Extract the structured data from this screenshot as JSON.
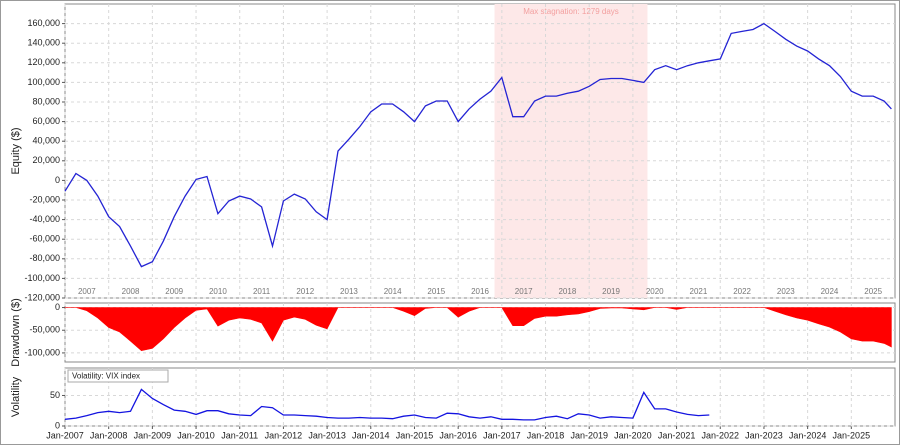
{
  "chart_data": [
    {
      "type": "line",
      "y_label": "Equity ($)",
      "xlim": [
        "2007-01",
        "2026-01"
      ],
      "xticks": [
        "2007",
        "2008",
        "2009",
        "2010",
        "2011",
        "2012",
        "2013",
        "2014",
        "2015",
        "2016",
        "2017",
        "2018",
        "2019",
        "2020",
        "2021",
        "2022",
        "2023",
        "2024",
        "2025"
      ],
      "ylim": [
        -120000,
        180000
      ],
      "yticks": [
        {
          "value": 160000,
          "label": "160,000"
        },
        {
          "value": 140000,
          "label": "140,000"
        },
        {
          "value": 120000,
          "label": "120,000"
        },
        {
          "value": 100000,
          "label": "100,000"
        },
        {
          "value": 80000,
          "label": "80,000"
        },
        {
          "value": 60000,
          "label": "60,000"
        },
        {
          "value": 40000,
          "label": "40,000"
        },
        {
          "value": 20000,
          "label": "20,000"
        },
        0,
        {
          "value": -20000,
          "label": "-20,000"
        },
        {
          "value": -40000,
          "label": "-40,000"
        },
        {
          "value": -60000,
          "label": "-60,000"
        },
        {
          "value": -80000,
          "label": "-80,000"
        },
        {
          "value": -100000,
          "label": "-100,000"
        },
        {
          "value": -120000,
          "label": "-120,000"
        }
      ],
      "grid": true,
      "shade": {
        "text": "Max stagnation: 1279 days",
        "x": [
          "2016-11",
          "2020-05"
        ],
        "color": "#fde8e8"
      },
      "x": [
        "2007-01",
        "2007-04",
        "2007-07",
        "2007-10",
        "2008-01",
        "2008-04",
        "2008-07",
        "2008-10",
        "2009-01",
        "2009-04",
        "2009-07",
        "2009-10",
        "2010-01",
        "2010-04",
        "2010-07",
        "2010-10",
        "2011-01",
        "2011-04",
        "2011-07",
        "2011-10",
        "2012-01",
        "2012-04",
        "2012-07",
        "2012-10",
        "2013-01",
        "2013-04",
        "2013-07",
        "2013-10",
        "2014-01",
        "2014-04",
        "2014-07",
        "2014-10",
        "2015-01",
        "2015-04",
        "2015-07",
        "2015-10",
        "2016-01",
        "2016-04",
        "2016-07",
        "2016-10",
        "2017-01",
        "2017-04",
        "2017-07",
        "2017-10",
        "2018-01",
        "2018-04",
        "2018-07",
        "2018-10",
        "2019-01",
        "2019-04",
        "2019-07",
        "2019-10",
        "2020-01",
        "2020-04",
        "2020-07",
        "2020-10",
        "2021-01",
        "2021-04",
        "2021-07",
        "2021-10",
        "2022-01",
        "2022-04",
        "2022-07",
        "2022-10",
        "2023-01",
        "2023-04",
        "2023-07",
        "2023-10",
        "2024-01",
        "2024-04",
        "2024-07",
        "2024-10",
        "2025-01",
        "2025-04",
        "2025-07",
        "2025-10",
        "2025-12"
      ],
      "series": [
        {
          "color": "#2424d4",
          "values": [
            -11000,
            7000,
            0,
            -16000,
            -37000,
            -47000,
            -67000,
            -88000,
            -83000,
            -62000,
            -37000,
            -16000,
            1000,
            4000,
            -34000,
            -21000,
            -16000,
            -19000,
            -27000,
            -67000,
            -21000,
            -14000,
            -19000,
            -32000,
            -40000,
            30000,
            42000,
            55000,
            70000,
            78000,
            78000,
            70000,
            60000,
            76000,
            81000,
            81000,
            60000,
            73000,
            83000,
            91000,
            105000,
            65000,
            65000,
            81000,
            86000,
            86000,
            89000,
            91000,
            96000,
            103000,
            104000,
            104000,
            102000,
            100000,
            113000,
            117000,
            113000,
            117000,
            120000,
            122000,
            124000,
            150000,
            152000,
            154000,
            160000,
            152000,
            144000,
            137000,
            132000,
            124000,
            117000,
            106000,
            91000,
            86000,
            86000,
            81000,
            73000
          ]
        }
      ]
    },
    {
      "type": "area",
      "y_label": "Drawdown ($)",
      "xlim": [
        "2007-01",
        "2026-01"
      ],
      "ylim": [
        -120000,
        10000
      ],
      "yticks": [
        0,
        {
          "value": -50000,
          "label": "-50,000"
        },
        {
          "value": -100000,
          "label": "-100,000"
        }
      ],
      "grid": true,
      "x": [
        "2007-01",
        "2007-04",
        "2007-07",
        "2007-10",
        "2008-01",
        "2008-04",
        "2008-07",
        "2008-10",
        "2009-01",
        "2009-04",
        "2009-07",
        "2009-10",
        "2010-01",
        "2010-04",
        "2010-07",
        "2010-10",
        "2011-01",
        "2011-04",
        "2011-07",
        "2011-10",
        "2012-01",
        "2012-04",
        "2012-07",
        "2012-10",
        "2013-01",
        "2013-04",
        "2013-07",
        "2013-10",
        "2014-01",
        "2014-04",
        "2014-07",
        "2014-10",
        "2015-01",
        "2015-04",
        "2015-07",
        "2015-10",
        "2016-01",
        "2016-04",
        "2016-07",
        "2016-10",
        "2017-01",
        "2017-04",
        "2017-07",
        "2017-10",
        "2018-01",
        "2018-04",
        "2018-07",
        "2018-10",
        "2019-01",
        "2019-04",
        "2019-07",
        "2019-10",
        "2020-01",
        "2020-04",
        "2020-07",
        "2020-10",
        "2021-01",
        "2021-04",
        "2021-07",
        "2021-10",
        "2022-01",
        "2022-04",
        "2022-07",
        "2022-10",
        "2023-01",
        "2023-04",
        "2023-07",
        "2023-10",
        "2024-01",
        "2024-04",
        "2024-07",
        "2024-10",
        "2025-01",
        "2025-04",
        "2025-07",
        "2025-10",
        "2025-12"
      ],
      "series": [
        {
          "color": "#ff0000",
          "values": [
            0,
            0,
            -7000,
            -23000,
            -44000,
            -54000,
            -74000,
            -95000,
            -90000,
            -69000,
            -44000,
            -23000,
            -6000,
            -3000,
            -41000,
            -28000,
            -23000,
            -26000,
            -34000,
            -74000,
            -28000,
            -21000,
            -26000,
            -39000,
            -47000,
            0,
            0,
            0,
            0,
            0,
            0,
            -8000,
            -18000,
            -2000,
            0,
            0,
            -21000,
            -8000,
            0,
            0,
            0,
            -40000,
            -40000,
            -24000,
            -19000,
            -19000,
            -16000,
            -14000,
            -9000,
            -2000,
            -1000,
            -1000,
            -3000,
            -5000,
            0,
            0,
            -4000,
            0,
            0,
            0,
            0,
            0,
            0,
            0,
            0,
            -8000,
            -16000,
            -23000,
            -28000,
            -36000,
            -43000,
            -54000,
            -69000,
            -74000,
            -74000,
            -79000,
            -87000
          ]
        }
      ]
    },
    {
      "type": "line",
      "y_label": "Volatility",
      "xlim": [
        "2007-01",
        "2026-01"
      ],
      "xticks": [
        {
          "value": "2007-01",
          "label": "Jan-2007"
        },
        {
          "value": "2008-01",
          "label": "Jan-2008"
        },
        {
          "value": "2009-01",
          "label": "Jan-2009"
        },
        {
          "value": "2010-01",
          "label": "Jan-2010"
        },
        {
          "value": "2011-01",
          "label": "Jan-2011"
        },
        {
          "value": "2012-01",
          "label": "Jan-2012"
        },
        {
          "value": "2013-01",
          "label": "Jan-2013"
        },
        {
          "value": "2014-01",
          "label": "Jan-2014"
        },
        {
          "value": "2015-01",
          "label": "Jan-2015"
        },
        {
          "value": "2016-01",
          "label": "Jan-2016"
        },
        {
          "value": "2017-01",
          "label": "Jan-2017"
        },
        {
          "value": "2018-01",
          "label": "Jan-2018"
        },
        {
          "value": "2019-01",
          "label": "Jan-2019"
        },
        {
          "value": "2020-01",
          "label": "Jan-2020"
        },
        {
          "value": "2021-01",
          "label": "Jan-2021"
        },
        {
          "value": "2022-01",
          "label": "Jan-2022"
        },
        {
          "value": "2023-01",
          "label": "Jan-2023"
        },
        {
          "value": "2024-01",
          "label": "Jan-2024"
        },
        {
          "value": "2025-01",
          "label": "Jan-2025"
        }
      ],
      "ylim": [
        0,
        95
      ],
      "yticks": [
        0,
        50
      ],
      "grid": true,
      "x": [
        "2007-01",
        "2007-04",
        "2007-07",
        "2007-10",
        "2008-01",
        "2008-04",
        "2008-07",
        "2008-10",
        "2009-01",
        "2009-04",
        "2009-07",
        "2009-10",
        "2010-01",
        "2010-04",
        "2010-07",
        "2010-10",
        "2011-01",
        "2011-04",
        "2011-07",
        "2011-10",
        "2012-01",
        "2012-04",
        "2012-07",
        "2012-10",
        "2013-01",
        "2013-04",
        "2013-07",
        "2013-10",
        "2014-01",
        "2014-04",
        "2014-07",
        "2014-10",
        "2015-01",
        "2015-04",
        "2015-07",
        "2015-10",
        "2016-01",
        "2016-04",
        "2016-07",
        "2016-10",
        "2017-01",
        "2017-04",
        "2017-07",
        "2017-10",
        "2018-01",
        "2018-04",
        "2018-07",
        "2018-10",
        "2019-01",
        "2019-04",
        "2019-07",
        "2019-10",
        "2020-01",
        "2020-04",
        "2020-07",
        "2020-10",
        "2021-01",
        "2021-04",
        "2021-07",
        "2021-10"
      ],
      "series": [
        {
          "name": "Volatility: VIX index",
          "color": "#1414e0",
          "values": [
            11,
            13,
            17,
            22,
            24,
            22,
            24,
            60,
            45,
            35,
            26,
            24,
            19,
            25,
            25,
            20,
            18,
            17,
            32,
            30,
            18,
            18,
            17,
            16,
            14,
            13,
            13,
            14,
            13,
            13,
            12,
            16,
            18,
            14,
            13,
            21,
            20,
            15,
            13,
            15,
            11,
            11,
            10,
            10,
            14,
            16,
            12,
            20,
            18,
            13,
            15,
            14,
            13,
            55,
            28,
            28,
            23,
            19,
            17,
            18
          ]
        }
      ]
    }
  ]
}
